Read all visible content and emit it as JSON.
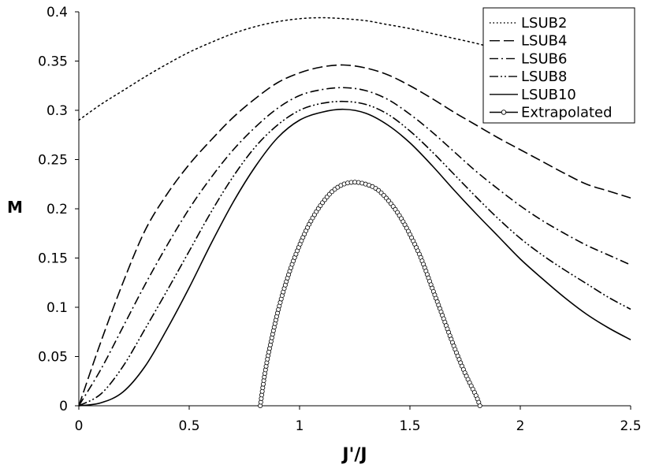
{
  "chart_data": {
    "type": "line",
    "title": "",
    "xlabel": "J'/J",
    "ylabel": "M",
    "xlim": [
      0,
      2.5
    ],
    "ylim": [
      0,
      0.4
    ],
    "xticks": [
      "0",
      "0.5",
      "1",
      "1.5",
      "2",
      "2.5"
    ],
    "yticks": [
      "0",
      "0.05",
      "0.1",
      "0.15",
      "0.2",
      "0.25",
      "0.3",
      "0.35",
      "0.4"
    ],
    "grid": false,
    "legend_position": "top-right",
    "series": [
      {
        "name": "LSUB2",
        "style": "dotted",
        "x": [
          0,
          0.1,
          0.2,
          0.3,
          0.4,
          0.5,
          0.6,
          0.7,
          0.8,
          0.9,
          1.0,
          1.1,
          1.2,
          1.3,
          1.4,
          1.5,
          1.6,
          1.7,
          1.8,
          1.9,
          2.0,
          2.1,
          2.2,
          2.3,
          2.4,
          2.5
        ],
        "y": [
          0.29,
          0.306,
          0.32,
          0.334,
          0.347,
          0.359,
          0.369,
          0.378,
          0.385,
          0.39,
          0.393,
          0.394,
          0.393,
          0.391,
          0.387,
          0.383,
          0.378,
          0.373,
          0.368,
          0.362,
          0.356,
          0.35,
          0.344,
          0.338,
          0.332,
          0.326
        ]
      },
      {
        "name": "LSUB4",
        "style": "dashed",
        "x": [
          0,
          0.1,
          0.2,
          0.3,
          0.4,
          0.5,
          0.6,
          0.7,
          0.8,
          0.9,
          1.0,
          1.1,
          1.2,
          1.3,
          1.4,
          1.5,
          1.6,
          1.7,
          1.8,
          1.9,
          2.0,
          2.1,
          2.2,
          2.3,
          2.4,
          2.5
        ],
        "y": [
          0.0,
          0.065,
          0.125,
          0.178,
          0.215,
          0.245,
          0.27,
          0.293,
          0.312,
          0.328,
          0.338,
          0.344,
          0.346,
          0.343,
          0.336,
          0.325,
          0.312,
          0.298,
          0.285,
          0.272,
          0.26,
          0.248,
          0.236,
          0.225,
          0.218,
          0.211
        ]
      },
      {
        "name": "LSUB6",
        "style": "dash-dot",
        "x": [
          0,
          0.1,
          0.2,
          0.3,
          0.4,
          0.5,
          0.6,
          0.7,
          0.8,
          0.9,
          1.0,
          1.1,
          1.2,
          1.3,
          1.4,
          1.5,
          1.6,
          1.7,
          1.8,
          1.9,
          2.0,
          2.1,
          2.2,
          2.3,
          2.4,
          2.5
        ],
        "y": [
          0.0,
          0.037,
          0.08,
          0.123,
          0.163,
          0.2,
          0.232,
          0.26,
          0.283,
          0.302,
          0.315,
          0.321,
          0.323,
          0.32,
          0.311,
          0.296,
          0.278,
          0.258,
          0.238,
          0.22,
          0.203,
          0.188,
          0.175,
          0.163,
          0.153,
          0.143
        ]
      },
      {
        "name": "LSUB8",
        "style": "dash-dot-dot",
        "x": [
          0,
          0.1,
          0.2,
          0.3,
          0.4,
          0.5,
          0.6,
          0.7,
          0.8,
          0.9,
          1.0,
          1.1,
          1.2,
          1.3,
          1.4,
          1.5,
          1.6,
          1.7,
          1.8,
          1.9,
          2.0,
          2.1,
          2.2,
          2.3,
          2.4,
          2.5
        ],
        "y": [
          0.0,
          0.012,
          0.04,
          0.078,
          0.117,
          0.157,
          0.197,
          0.233,
          0.263,
          0.285,
          0.3,
          0.307,
          0.309,
          0.306,
          0.296,
          0.279,
          0.258,
          0.235,
          0.212,
          0.19,
          0.17,
          0.153,
          0.138,
          0.124,
          0.11,
          0.098
        ]
      },
      {
        "name": "LSUB10",
        "style": "solid",
        "x": [
          0,
          0.1,
          0.2,
          0.3,
          0.4,
          0.5,
          0.6,
          0.7,
          0.8,
          0.9,
          1.0,
          1.1,
          1.2,
          1.3,
          1.4,
          1.5,
          1.6,
          1.7,
          1.8,
          1.9,
          2.0,
          2.1,
          2.2,
          2.3,
          2.4,
          2.5
        ],
        "y": [
          0.0,
          0.003,
          0.014,
          0.04,
          0.078,
          0.12,
          0.165,
          0.207,
          0.243,
          0.272,
          0.29,
          0.298,
          0.301,
          0.297,
          0.285,
          0.267,
          0.244,
          0.219,
          0.195,
          0.172,
          0.149,
          0.129,
          0.11,
          0.093,
          0.079,
          0.067
        ]
      },
      {
        "name": "Extrapolated",
        "style": "solid-markers",
        "x": [
          0.822,
          0.85,
          0.9,
          0.95,
          1.0,
          1.05,
          1.1,
          1.15,
          1.2,
          1.25,
          1.3,
          1.35,
          1.4,
          1.45,
          1.5,
          1.55,
          1.6,
          1.65,
          1.7,
          1.75,
          1.8,
          1.817
        ],
        "y": [
          0.0,
          0.042,
          0.094,
          0.133,
          0.163,
          0.187,
          0.205,
          0.218,
          0.225,
          0.227,
          0.225,
          0.22,
          0.209,
          0.194,
          0.174,
          0.15,
          0.12,
          0.09,
          0.06,
          0.033,
          0.01,
          0.0
        ]
      }
    ]
  }
}
